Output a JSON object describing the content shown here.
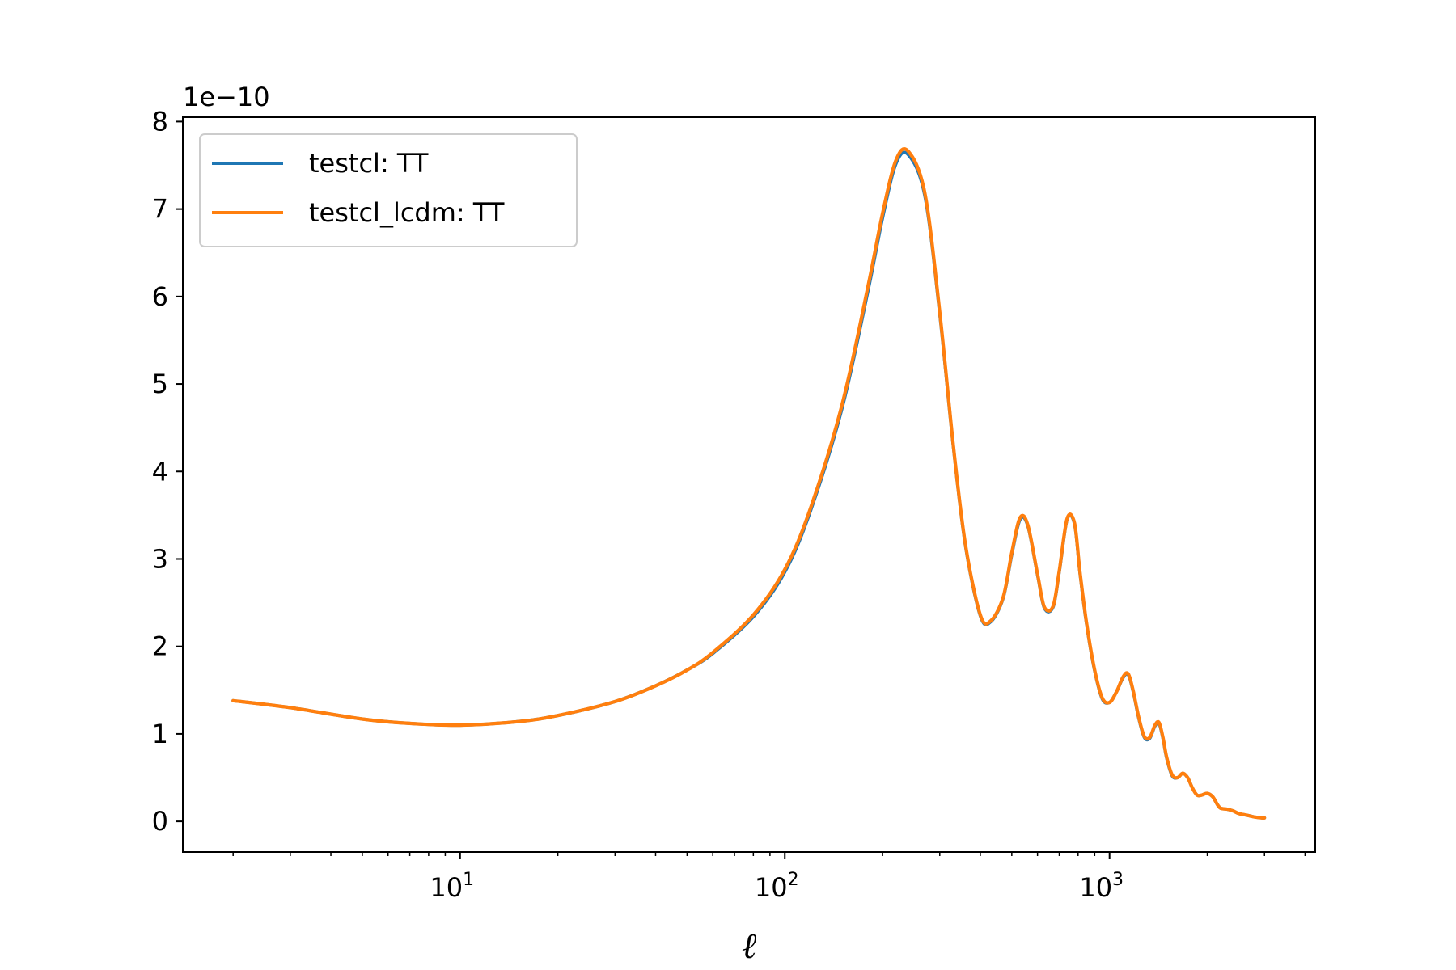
{
  "chart_data": {
    "type": "line",
    "title": "",
    "xlabel": "ℓ",
    "ylabel": "",
    "y_offset_label": "1e−10",
    "xscale": "log",
    "xlim": [
      1.4,
      4300
    ],
    "ylim": [
      -0.35,
      8.05
    ],
    "y_multiplier": 1e-10,
    "grid": false,
    "legend_position": "top-left",
    "xticks": [
      {
        "value": 10,
        "base": "10",
        "exp": "1"
      },
      {
        "value": 100,
        "base": "10",
        "exp": "2"
      },
      {
        "value": 1000,
        "base": "10",
        "exp": "3"
      }
    ],
    "yticks": [
      {
        "value": 0,
        "label": "0"
      },
      {
        "value": 1,
        "label": "1"
      },
      {
        "value": 2,
        "label": "2"
      },
      {
        "value": 3,
        "label": "3"
      },
      {
        "value": 4,
        "label": "4"
      },
      {
        "value": 5,
        "label": "5"
      },
      {
        "value": 6,
        "label": "6"
      },
      {
        "value": 7,
        "label": "7"
      },
      {
        "value": 8,
        "label": "8"
      }
    ],
    "series": [
      {
        "name": "testcl: TT",
        "color": "#1f77b4",
        "x": [
          2,
          3,
          5,
          7,
          10,
          15,
          20,
          30,
          40,
          50,
          60,
          80,
          100,
          120,
          150,
          180,
          200,
          220,
          240,
          270,
          300,
          330,
          360,
          400,
          430,
          470,
          500,
          530,
          560,
          600,
          630,
          670,
          700,
          740,
          780,
          810,
          850,
          900,
          950,
          1000,
          1050,
          1100,
          1140,
          1180,
          1230,
          1280,
          1330,
          1380,
          1420,
          1460,
          1500,
          1560,
          1620,
          1680,
          1740,
          1800,
          1860,
          1920,
          2000,
          2080,
          2150,
          2200,
          2300,
          2400,
          2500,
          2650,
          2800,
          2950,
          3000
        ],
        "y": [
          1.38,
          1.3,
          1.17,
          1.12,
          1.1,
          1.14,
          1.21,
          1.37,
          1.55,
          1.73,
          1.92,
          2.34,
          2.85,
          3.55,
          4.72,
          6.05,
          6.9,
          7.52,
          7.62,
          7.15,
          5.8,
          4.3,
          3.15,
          2.35,
          2.28,
          2.55,
          3.05,
          3.45,
          3.38,
          2.82,
          2.44,
          2.45,
          2.85,
          3.45,
          3.4,
          2.85,
          2.25,
          1.72,
          1.4,
          1.36,
          1.48,
          1.64,
          1.68,
          1.5,
          1.18,
          0.96,
          0.95,
          1.09,
          1.12,
          0.95,
          0.72,
          0.52,
          0.5,
          0.55,
          0.5,
          0.38,
          0.3,
          0.3,
          0.32,
          0.28,
          0.19,
          0.15,
          0.14,
          0.12,
          0.09,
          0.07,
          0.05,
          0.04,
          0.04
        ]
      },
      {
        "name": "testcl_lcdm: TT",
        "color": "#ff7f0e",
        "x": [
          2,
          3,
          5,
          7,
          10,
          15,
          20,
          30,
          40,
          50,
          60,
          80,
          100,
          120,
          150,
          180,
          200,
          220,
          240,
          270,
          300,
          330,
          360,
          400,
          430,
          470,
          500,
          530,
          560,
          600,
          630,
          670,
          700,
          740,
          780,
          810,
          850,
          900,
          950,
          1000,
          1050,
          1100,
          1140,
          1180,
          1230,
          1280,
          1330,
          1380,
          1420,
          1460,
          1500,
          1560,
          1620,
          1680,
          1740,
          1800,
          1860,
          1920,
          2000,
          2080,
          2150,
          2200,
          2300,
          2400,
          2500,
          2650,
          2800,
          2950,
          3000
        ],
        "y": [
          1.38,
          1.3,
          1.17,
          1.12,
          1.1,
          1.14,
          1.21,
          1.37,
          1.55,
          1.73,
          1.93,
          2.36,
          2.88,
          3.58,
          4.76,
          6.1,
          6.95,
          7.56,
          7.66,
          7.18,
          5.82,
          4.31,
          3.16,
          2.36,
          2.29,
          2.56,
          3.07,
          3.47,
          3.39,
          2.83,
          2.45,
          2.46,
          2.86,
          3.46,
          3.41,
          2.86,
          2.26,
          1.73,
          1.41,
          1.36,
          1.48,
          1.65,
          1.69,
          1.51,
          1.19,
          0.97,
          0.96,
          1.1,
          1.13,
          0.96,
          0.73,
          0.53,
          0.5,
          0.55,
          0.5,
          0.38,
          0.3,
          0.3,
          0.32,
          0.28,
          0.19,
          0.15,
          0.14,
          0.12,
          0.09,
          0.07,
          0.05,
          0.04,
          0.04
        ]
      }
    ]
  }
}
